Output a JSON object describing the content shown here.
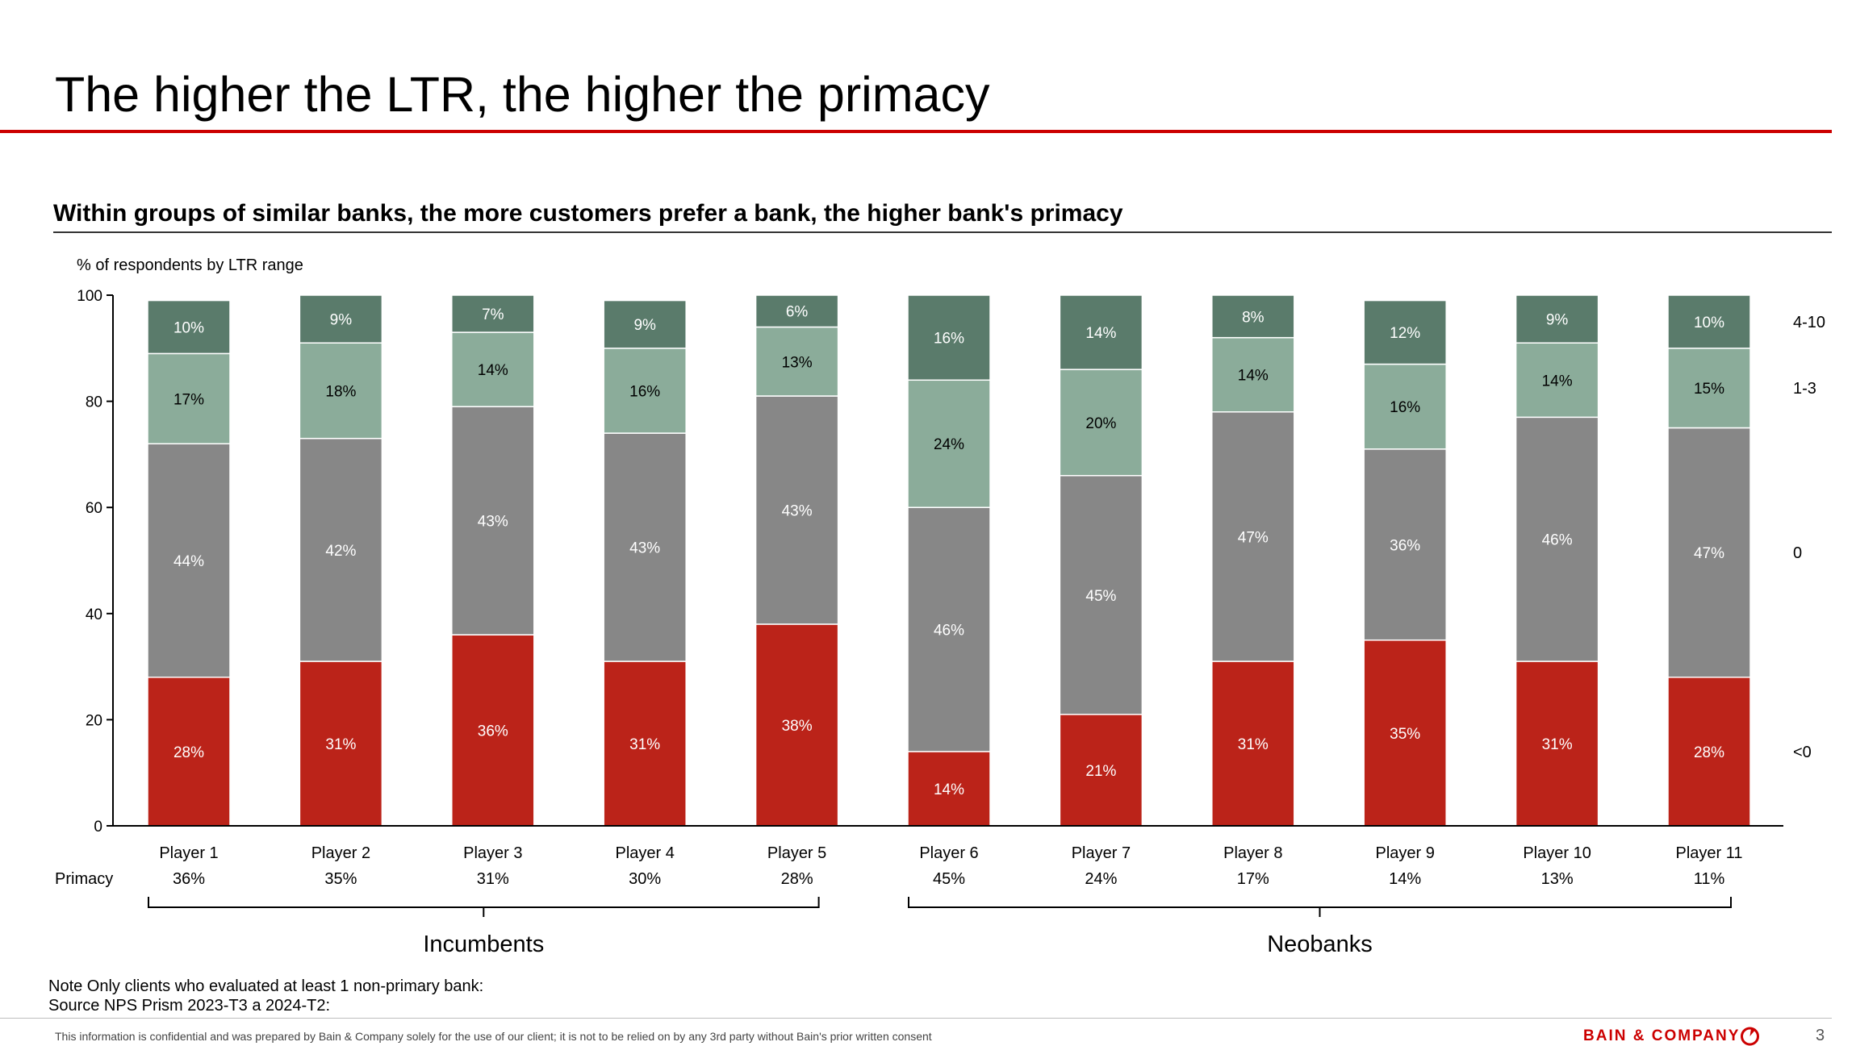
{
  "page": {
    "title": "The higher the LTR, the higher the primacy",
    "subtitle": "Within groups of similar banks, the more customers prefer a bank, the higher bank's primacy",
    "note": "Note Only clients who evaluated at least 1 non-primary bank:",
    "source": "Source NPS Prism 2023-T3 a 2024-T2:",
    "footer": "This information is confidential and was prepared by Bain & Company solely for the use of our client; it is not to be relied on by any 3rd party without Bain's prior written consent",
    "brand": "BAIN & COMPANY",
    "page_number": "3"
  },
  "chart_data": {
    "type": "bar",
    "stacked": true,
    "ylabel": "% of respondents by LTR range",
    "ylim": [
      0,
      100
    ],
    "yticks": [
      0,
      20,
      40,
      60,
      80,
      100
    ],
    "categories": [
      "Player 1",
      "Player 2",
      "Player 3",
      "Player 4",
      "Player 5",
      "Player 6",
      "Player 7",
      "Player 8",
      "Player 9",
      "Player 10",
      "Player 11"
    ],
    "series": [
      {
        "name": "<0",
        "color": "#bb2319",
        "values": [
          28,
          31,
          36,
          31,
          38,
          14,
          21,
          31,
          35,
          31,
          28
        ]
      },
      {
        "name": "0",
        "color": "#878787",
        "values": [
          44,
          42,
          43,
          43,
          43,
          46,
          45,
          47,
          36,
          46,
          47
        ]
      },
      {
        "name": "1-3",
        "color": "#8bac9a",
        "values": [
          17,
          18,
          14,
          16,
          13,
          24,
          20,
          14,
          16,
          14,
          15
        ]
      },
      {
        "name": "4-10",
        "color": "#5a7b6b",
        "values": [
          10,
          9,
          7,
          9,
          6,
          16,
          14,
          8,
          12,
          9,
          10
        ]
      }
    ],
    "primacy_label": "Primacy",
    "primacy": [
      "36%",
      "35%",
      "31%",
      "30%",
      "28%",
      "45%",
      "24%",
      "17%",
      "14%",
      "13%",
      "11%"
    ],
    "groups": [
      {
        "name": "Incumbents",
        "first": 0,
        "last": 4
      },
      {
        "name": "Neobanks",
        "first": 5,
        "last": 10
      }
    ]
  }
}
